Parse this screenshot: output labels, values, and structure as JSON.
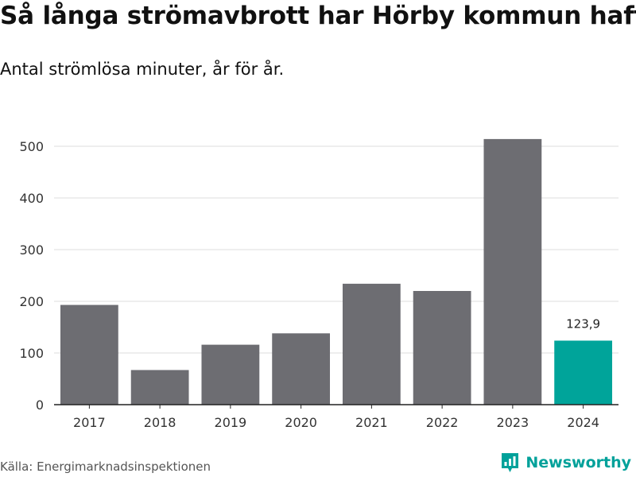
{
  "title": "Så långa strömavbrott har Hörby kommun haft",
  "subtitle": "Antal strömlösa minuter, år för år.",
  "source": "Källa: Energimarknadsinspektionen",
  "brand": {
    "name": "Newsworthy",
    "icon": "newsworthy-logo-icon"
  },
  "colors": {
    "bar": "#6d6d72",
    "highlight": "#00a49a",
    "grid": "#dcdcdc",
    "axis": "#222222"
  },
  "chart_data": {
    "type": "bar",
    "categories": [
      "2017",
      "2018",
      "2019",
      "2020",
      "2021",
      "2022",
      "2023",
      "2024"
    ],
    "values": [
      193,
      67,
      116,
      138,
      234,
      220,
      514,
      123.9
    ],
    "highlight_index": 7,
    "data_labels": [
      null,
      null,
      null,
      null,
      null,
      null,
      null,
      "123,9"
    ],
    "ylim": [
      0,
      500
    ],
    "yticks": [
      0,
      100,
      200,
      300,
      400,
      500
    ],
    "grid": true,
    "xlabel": "",
    "ylabel": ""
  }
}
